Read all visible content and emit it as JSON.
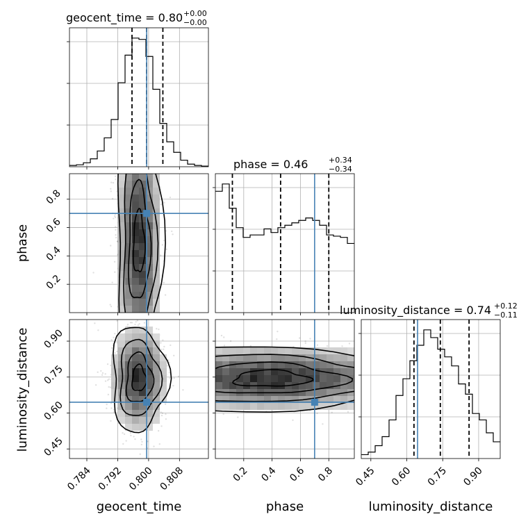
{
  "chart_data": {
    "type": "corner",
    "parameters": [
      "geocent_time",
      "phase",
      "luminosity_distance"
    ],
    "truths": {
      "geocent_time": 0.7995,
      "phase": 0.7,
      "luminosity_distance": 0.645
    },
    "ranges": {
      "geocent_time": [
        0.7795,
        0.8155
      ],
      "phase": [
        0.0,
        0.98
      ],
      "luminosity_distance": [
        0.41,
        0.99
      ]
    },
    "ticks": {
      "geocent_time": [
        "0.784",
        "0.792",
        "0.800",
        "0.808"
      ],
      "phase": [
        "0.2",
        "0.4",
        "0.6",
        "0.8"
      ],
      "luminosity_distance": [
        "0.45",
        "0.60",
        "0.75",
        "0.90"
      ]
    },
    "titles": [
      {
        "param": "geocent_time",
        "name": "geocent_time",
        "median": "0.80",
        "plus": "+0.00",
        "minus": "−0.00"
      },
      {
        "param": "phase",
        "name": "phase",
        "median": "0.46",
        "plus": "+0.34",
        "minus": "−0.34"
      },
      {
        "param": "luminosity_distance",
        "name": "luminosity_distance",
        "median": "0.74",
        "plus": "+0.12",
        "minus": "−0.11"
      }
    ],
    "quantiles": {
      "geocent_time": [
        0.7957,
        0.7995,
        0.8037
      ],
      "phase": [
        0.12,
        0.46,
        0.8
      ],
      "luminosity_distance": [
        0.63,
        0.74,
        0.86
      ]
    },
    "histograms": {
      "geocent_time": [
        0.01,
        0.015,
        0.03,
        0.06,
        0.12,
        0.22,
        0.36,
        0.64,
        0.85,
        0.98,
        0.97,
        0.84,
        0.59,
        0.33,
        0.19,
        0.11,
        0.05,
        0.02,
        0.01,
        0.005
      ],
      "phase": [
        1.0,
        1.06,
        0.86,
        0.7,
        0.62,
        0.64,
        0.64,
        0.69,
        0.66,
        0.7,
        0.72,
        0.74,
        0.76,
        0.78,
        0.76,
        0.72,
        0.64,
        0.63,
        0.62,
        0.57
      ],
      "luminosity_distance": [
        0.03,
        0.05,
        0.1,
        0.17,
        0.3,
        0.49,
        0.62,
        0.76,
        0.88,
        1.0,
        0.94,
        0.85,
        0.79,
        0.72,
        0.58,
        0.5,
        0.35,
        0.3,
        0.2,
        0.13
      ]
    },
    "grid": true
  }
}
